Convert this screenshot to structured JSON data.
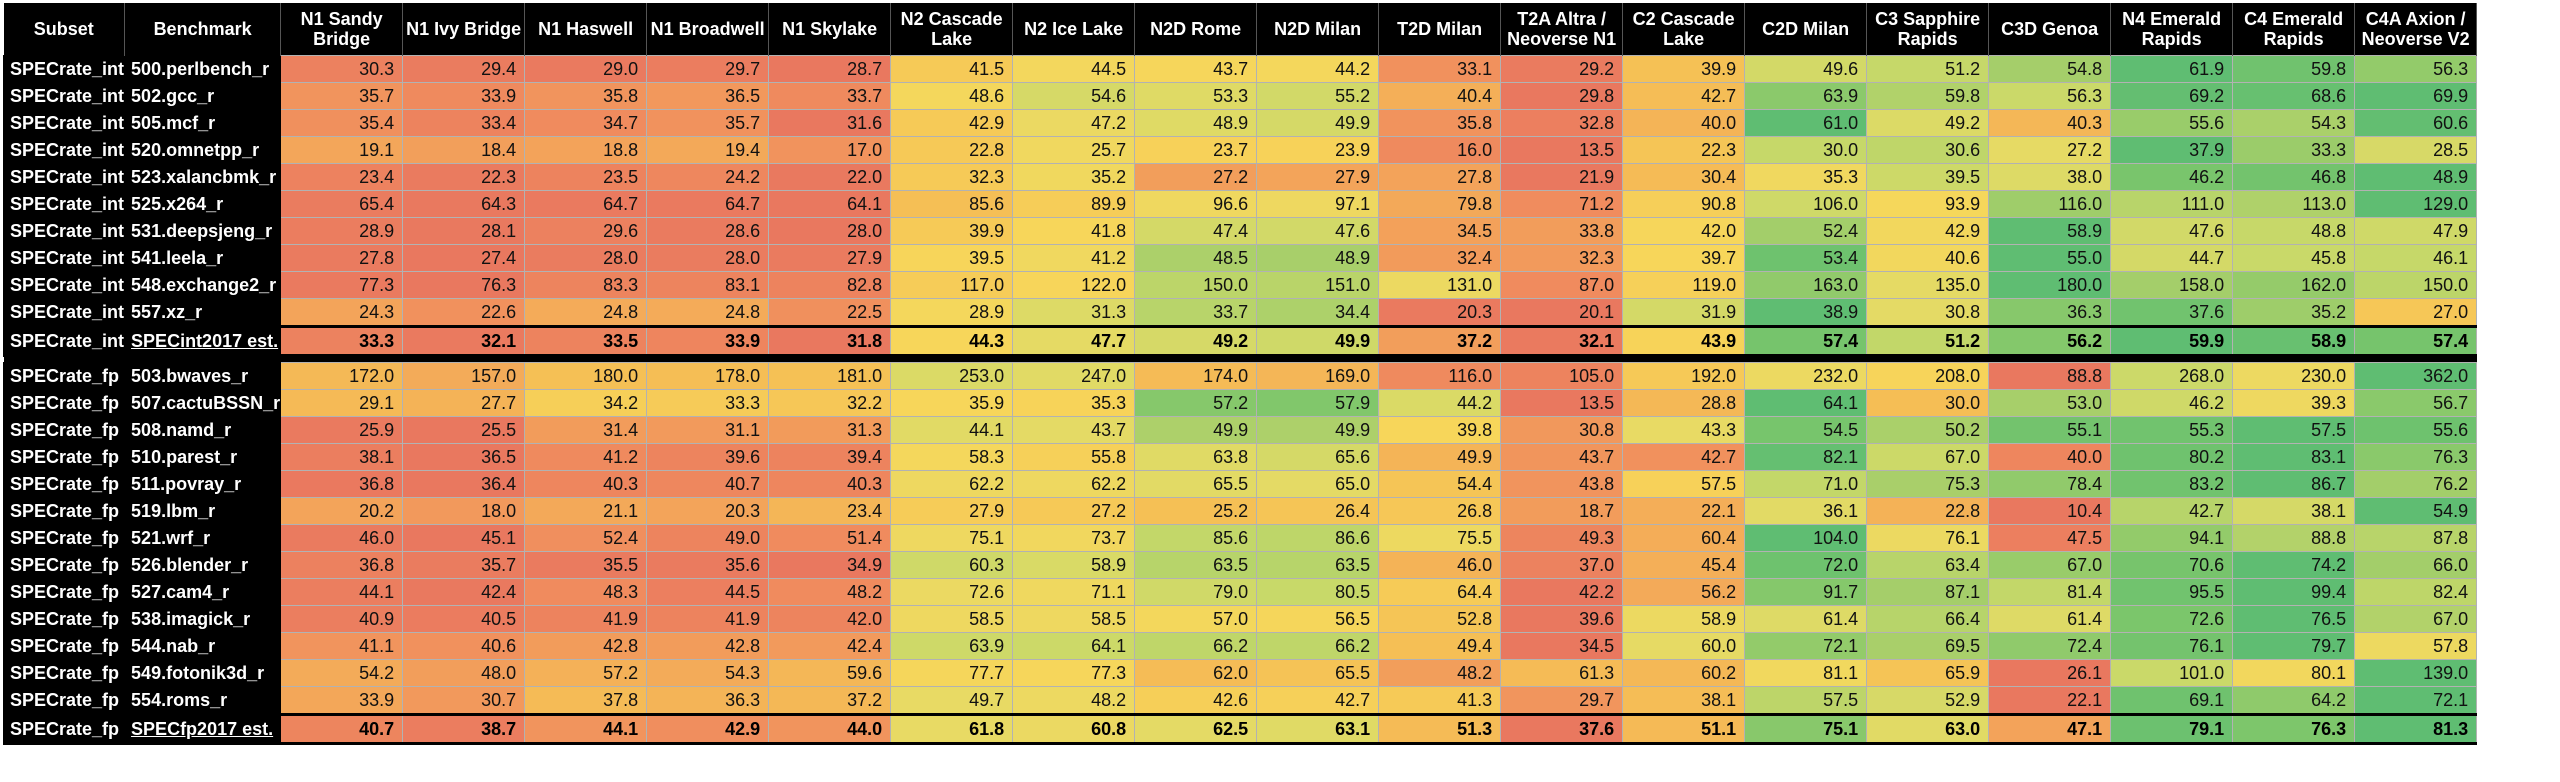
{
  "chart_data": {
    "type": "heatmap",
    "headers": [
      "Subset",
      "Benchmark",
      "N1 Sandy Bridge",
      "N1 Ivy Bridge",
      "N1 Haswell",
      "N1 Broadwell",
      "N1 Skylake",
      "N2 Cascade Lake",
      "N2 Ice Lake",
      "N2D Rome",
      "N2D Milan",
      "T2D Milan",
      "T2A Altra / Neoverse N1",
      "C2 Cascade Lake",
      "C2D Milan",
      "C3 Sapphire Rapids",
      "C3D Genoa",
      "N4 Emerald Rapids",
      "C4 Emerald Rapids",
      "C4A Axion / Neoverse V2"
    ],
    "column_colors": [
      "#f7d65a",
      "#f5c055",
      "#f3a45a",
      "#f08c5e",
      "#e9785f",
      "#e8da64",
      "#c9d969",
      "#a8cf6a",
      "#7cc66b",
      "#5fbd72"
    ],
    "groups": [
      {
        "rows": [
          {
            "subset": "SPECrate_int",
            "benchmark": "500.perlbench_r",
            "values": [
              30.3,
              29.4,
              29.0,
              29.7,
              28.7,
              41.5,
              44.5,
              43.7,
              44.2,
              33.1,
              29.2,
              39.9,
              49.6,
              51.2,
              54.8,
              61.9,
              59.8,
              56.3
            ]
          },
          {
            "subset": "SPECrate_int",
            "benchmark": "502.gcc_r",
            "values": [
              35.7,
              33.9,
              35.8,
              36.5,
              33.7,
              48.6,
              54.6,
              53.3,
              55.2,
              40.4,
              29.8,
              42.7,
              63.9,
              59.8,
              56.3,
              69.2,
              68.6,
              69.9
            ]
          },
          {
            "subset": "SPECrate_int",
            "benchmark": "505.mcf_r",
            "values": [
              35.4,
              33.4,
              34.7,
              35.7,
              31.6,
              42.9,
              47.2,
              48.9,
              49.9,
              35.8,
              32.8,
              40.0,
              61.0,
              49.2,
              40.3,
              55.6,
              54.3,
              60.6
            ]
          },
          {
            "subset": "SPECrate_int",
            "benchmark": "520.omnetpp_r",
            "values": [
              19.1,
              18.4,
              18.8,
              19.4,
              17.0,
              22.8,
              25.7,
              23.7,
              23.9,
              16.0,
              13.5,
              22.3,
              30.0,
              30.6,
              27.2,
              37.9,
              33.3,
              28.5
            ]
          },
          {
            "subset": "SPECrate_int",
            "benchmark": "523.xalancbmk_r",
            "values": [
              23.4,
              22.3,
              23.5,
              24.2,
              22.0,
              32.3,
              35.2,
              27.2,
              27.9,
              27.8,
              21.9,
              30.4,
              35.3,
              39.5,
              38.0,
              46.2,
              46.8,
              48.9
            ]
          },
          {
            "subset": "SPECrate_int",
            "benchmark": "525.x264_r",
            "values": [
              65.4,
              64.3,
              64.7,
              64.7,
              64.1,
              85.6,
              89.9,
              96.6,
              97.1,
              79.8,
              71.2,
              90.8,
              106.0,
              93.9,
              116.0,
              111.0,
              113.0,
              129.0
            ]
          },
          {
            "subset": "SPECrate_int",
            "benchmark": "531.deepsjeng_r",
            "values": [
              28.9,
              28.1,
              29.6,
              28.6,
              28.0,
              39.9,
              41.8,
              47.4,
              47.6,
              34.5,
              33.8,
              42.0,
              52.4,
              42.9,
              58.9,
              47.6,
              48.8,
              47.9
            ]
          },
          {
            "subset": "SPECrate_int",
            "benchmark": "541.leela_r",
            "values": [
              27.8,
              27.4,
              28.0,
              28.0,
              27.9,
              39.5,
              41.2,
              48.5,
              48.9,
              32.4,
              32.3,
              39.7,
              53.4,
              40.6,
              55.0,
              44.7,
              45.8,
              46.1
            ]
          },
          {
            "subset": "SPECrate_int",
            "benchmark": "548.exchange2_r",
            "values": [
              77.3,
              76.3,
              83.3,
              83.1,
              82.8,
              117.0,
              122.0,
              150.0,
              151.0,
              131.0,
              87.0,
              119.0,
              163.0,
              135.0,
              180.0,
              158.0,
              162.0,
              150.0
            ]
          },
          {
            "subset": "SPECrate_int",
            "benchmark": "557.xz_r",
            "values": [
              24.3,
              22.6,
              24.8,
              24.8,
              22.5,
              28.9,
              31.3,
              33.7,
              34.4,
              20.3,
              20.1,
              31.9,
              38.9,
              30.8,
              36.3,
              37.6,
              35.2,
              27.0
            ]
          }
        ],
        "estimate": {
          "subset": "SPECrate_int",
          "benchmark": "SPECint2017 est.",
          "values": [
            33.3,
            32.1,
            33.5,
            33.9,
            31.8,
            44.3,
            47.7,
            49.2,
            49.9,
            37.2,
            32.1,
            43.9,
            57.4,
            51.2,
            56.2,
            59.9,
            58.9,
            57.4
          ]
        }
      },
      {
        "rows": [
          {
            "subset": "SPECrate_fp",
            "benchmark": "503.bwaves_r",
            "values": [
              172.0,
              157.0,
              180.0,
              178.0,
              181.0,
              253.0,
              247.0,
              174.0,
              169.0,
              116.0,
              105.0,
              192.0,
              232.0,
              208.0,
              88.8,
              268.0,
              230.0,
              362.0
            ]
          },
          {
            "subset": "SPECrate_fp",
            "benchmark": "507.cactuBSSN_r",
            "values": [
              29.1,
              27.7,
              34.2,
              33.3,
              32.2,
              35.9,
              35.3,
              57.2,
              57.9,
              44.2,
              13.5,
              28.8,
              64.1,
              30.0,
              53.0,
              46.2,
              39.3,
              56.7
            ]
          },
          {
            "subset": "SPECrate_fp",
            "benchmark": "508.namd_r",
            "values": [
              25.9,
              25.5,
              31.4,
              31.1,
              31.3,
              44.1,
              43.7,
              49.9,
              49.9,
              39.8,
              30.8,
              43.3,
              54.5,
              50.2,
              55.1,
              55.3,
              57.5,
              55.6
            ]
          },
          {
            "subset": "SPECrate_fp",
            "benchmark": "510.parest_r",
            "values": [
              38.1,
              36.5,
              41.2,
              39.6,
              39.4,
              58.3,
              55.8,
              63.8,
              65.6,
              49.9,
              43.7,
              42.7,
              82.1,
              67.0,
              40.0,
              80.2,
              83.1,
              76.3
            ]
          },
          {
            "subset": "SPECrate_fp",
            "benchmark": "511.povray_r",
            "values": [
              36.8,
              36.4,
              40.3,
              40.7,
              40.3,
              62.2,
              62.2,
              65.5,
              65.0,
              54.4,
              43.8,
              57.5,
              71.0,
              75.3,
              78.4,
              83.2,
              86.7,
              76.2
            ]
          },
          {
            "subset": "SPECrate_fp",
            "benchmark": "519.lbm_r",
            "values": [
              20.2,
              18.0,
              21.1,
              20.3,
              23.4,
              27.9,
              27.2,
              25.2,
              26.4,
              26.8,
              18.7,
              22.1,
              36.1,
              22.8,
              10.4,
              42.7,
              38.1,
              54.9
            ]
          },
          {
            "subset": "SPECrate_fp",
            "benchmark": "521.wrf_r",
            "values": [
              46.0,
              45.1,
              52.4,
              49.0,
              51.4,
              75.1,
              73.7,
              85.6,
              86.6,
              75.5,
              49.3,
              60.4,
              104.0,
              76.1,
              47.5,
              94.1,
              88.8,
              87.8
            ]
          },
          {
            "subset": "SPECrate_fp",
            "benchmark": "526.blender_r",
            "values": [
              36.8,
              35.7,
              35.5,
              35.6,
              34.9,
              60.3,
              58.9,
              63.5,
              63.5,
              46.0,
              37.0,
              45.4,
              72.0,
              63.4,
              67.0,
              70.6,
              74.2,
              66.0
            ]
          },
          {
            "subset": "SPECrate_fp",
            "benchmark": "527.cam4_r",
            "values": [
              44.1,
              42.4,
              48.3,
              44.5,
              48.2,
              72.6,
              71.1,
              79.0,
              80.5,
              64.4,
              42.2,
              56.2,
              91.7,
              87.1,
              81.4,
              95.5,
              99.4,
              82.4
            ]
          },
          {
            "subset": "SPECrate_fp",
            "benchmark": "538.imagick_r",
            "values": [
              40.9,
              40.5,
              41.9,
              41.9,
              42.0,
              58.5,
              58.5,
              57.0,
              56.5,
              52.8,
              39.6,
              58.9,
              61.4,
              66.4,
              61.4,
              72.6,
              76.5,
              67.0
            ]
          },
          {
            "subset": "SPECrate_fp",
            "benchmark": "544.nab_r",
            "values": [
              41.1,
              40.6,
              42.8,
              42.8,
              42.4,
              63.9,
              64.1,
              66.2,
              66.2,
              49.4,
              34.5,
              60.0,
              72.1,
              69.5,
              72.4,
              76.1,
              79.7,
              57.8
            ]
          },
          {
            "subset": "SPECrate_fp",
            "benchmark": "549.fotonik3d_r",
            "values": [
              54.2,
              48.0,
              57.2,
              54.3,
              59.6,
              77.7,
              77.3,
              62.0,
              65.5,
              48.2,
              61.3,
              60.2,
              81.1,
              65.9,
              26.1,
              101.0,
              80.1,
              139.0
            ]
          },
          {
            "subset": "SPECrate_fp",
            "benchmark": "554.roms_r",
            "values": [
              33.9,
              30.7,
              37.8,
              36.3,
              37.2,
              49.7,
              48.2,
              42.6,
              42.7,
              41.3,
              29.7,
              38.1,
              57.5,
              52.9,
              22.1,
              69.1,
              64.2,
              72.1
            ]
          }
        ],
        "estimate": {
          "subset": "SPECrate_fp",
          "benchmark": "SPECfp2017 est.",
          "values": [
            40.7,
            38.7,
            44.1,
            42.9,
            44.0,
            61.8,
            60.8,
            62.5,
            63.1,
            51.3,
            37.6,
            51.1,
            75.1,
            63.0,
            47.1,
            79.1,
            76.3,
            81.3
          ]
        }
      }
    ]
  }
}
